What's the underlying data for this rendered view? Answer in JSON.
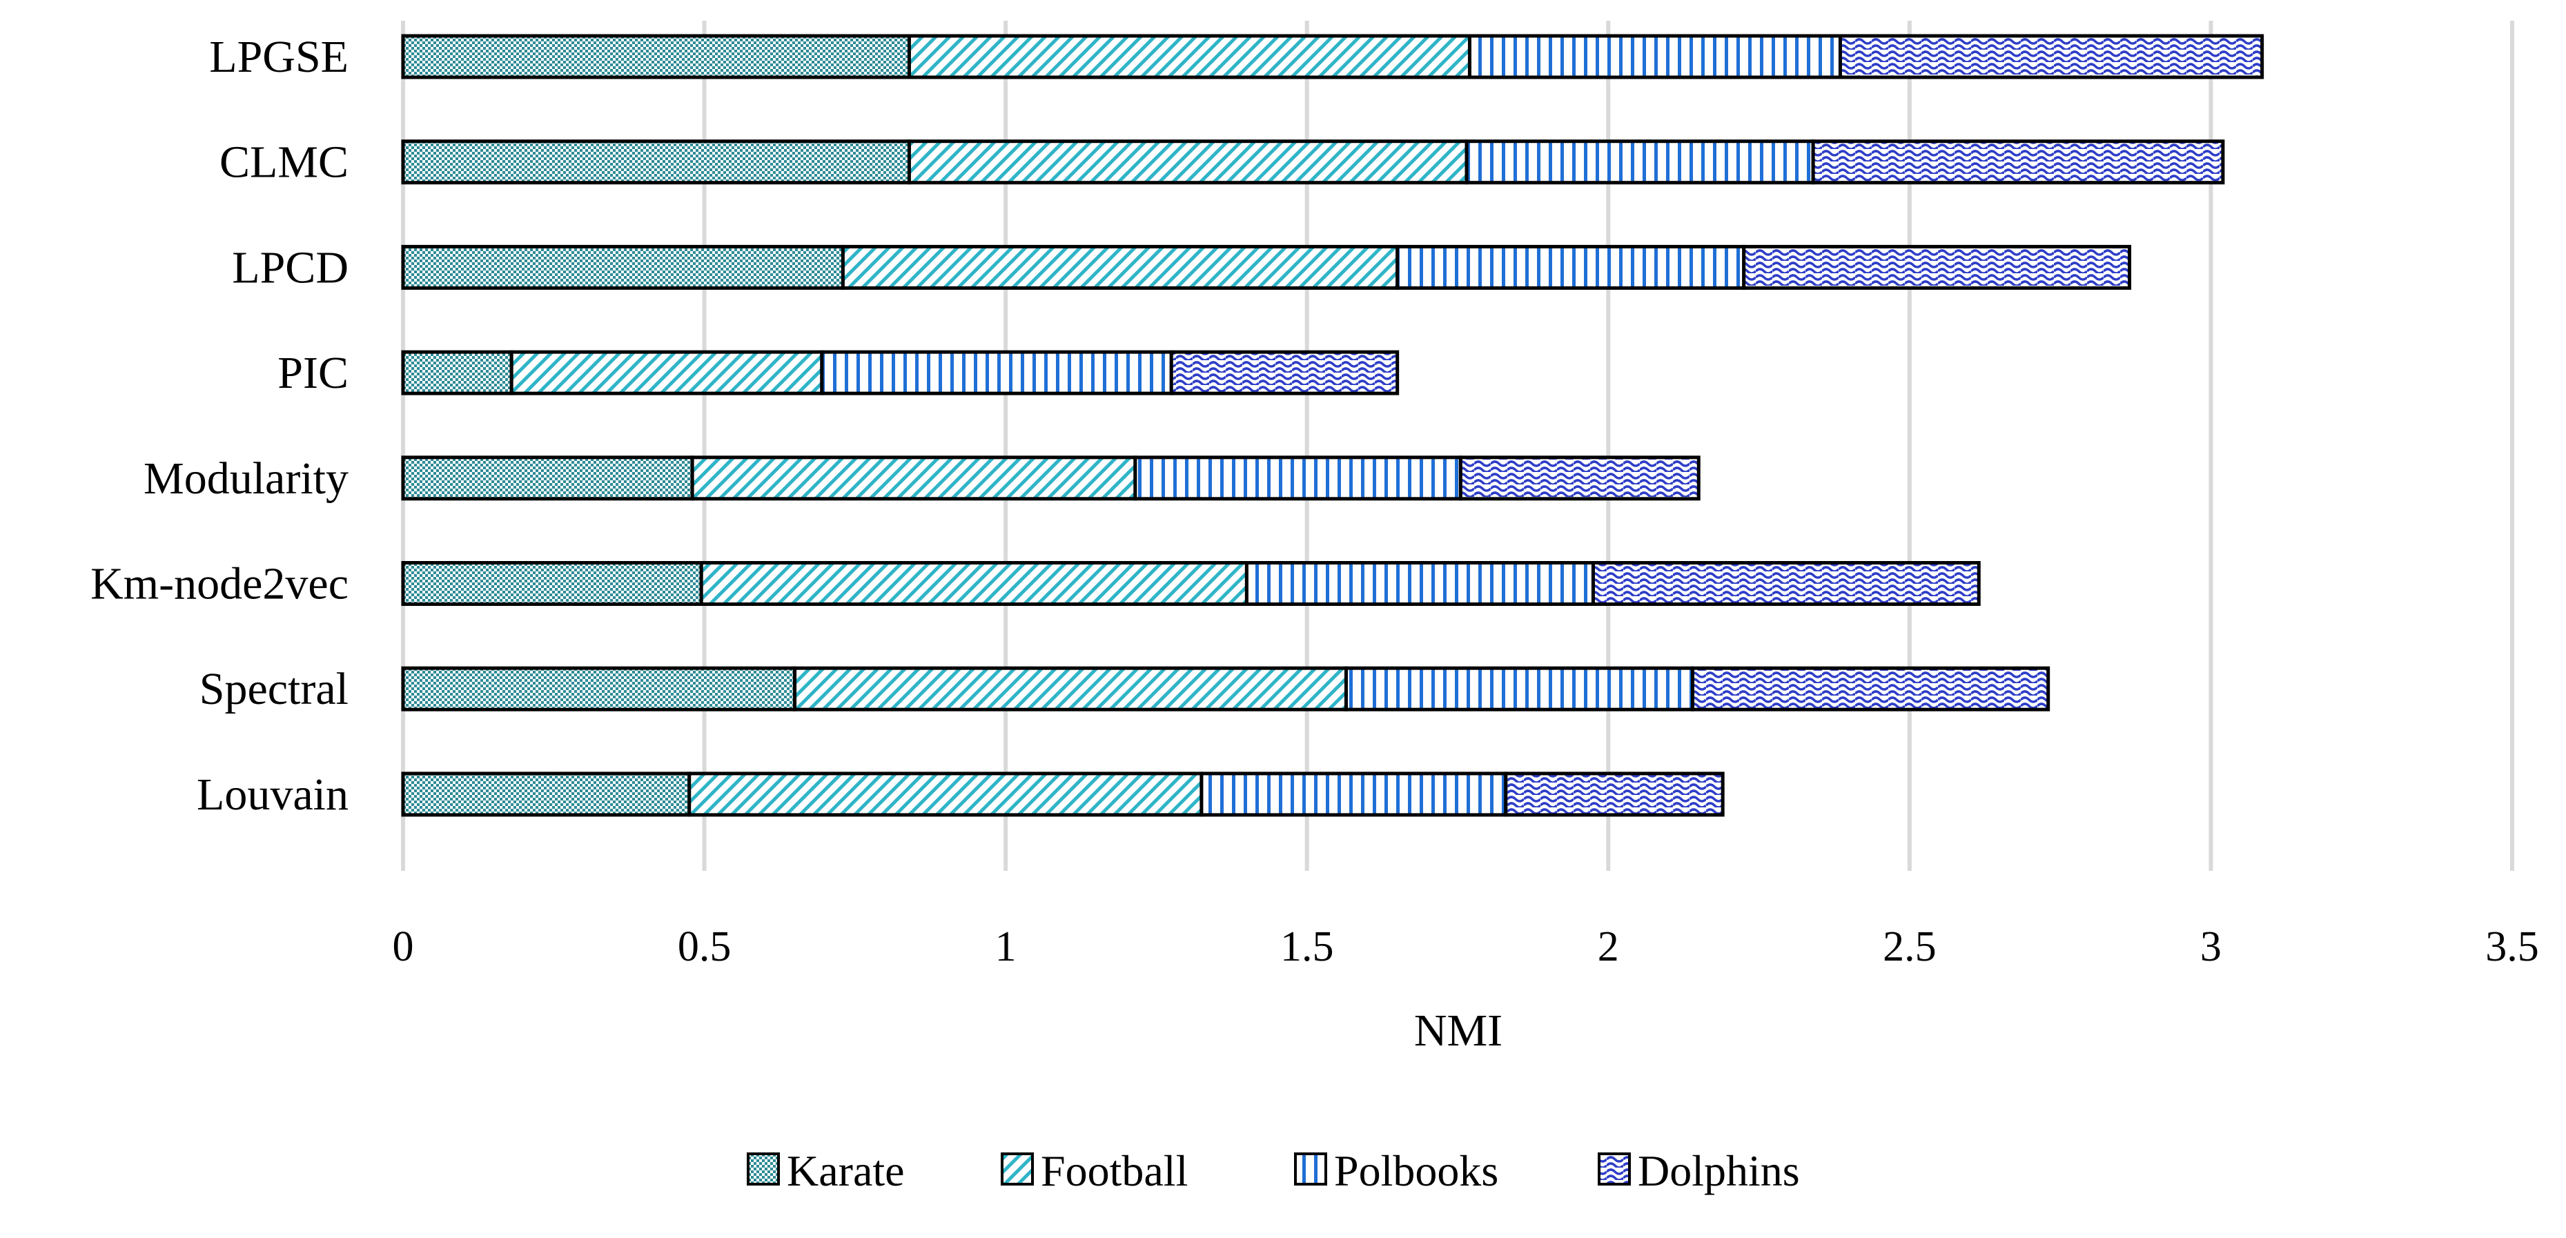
{
  "chart_data": {
    "type": "bar",
    "orientation": "horizontal",
    "stacked": true,
    "title": "",
    "xlabel": "NMI",
    "ylabel": "",
    "xlim": [
      0,
      3.5
    ],
    "xticks": [
      "0",
      "0.5",
      "1",
      "1.5",
      "2",
      "2.5",
      "3",
      "3.5"
    ],
    "grid": true,
    "legend_position": "bottom",
    "categories": [
      "LPGSE",
      "CLMC",
      "LPCD",
      "PIC",
      "Modularity",
      "Km-node2vec",
      "Spectral",
      "Louvain"
    ],
    "series": [
      {
        "name": "Karate",
        "color": "#2e8b96",
        "values": [
          0.84,
          0.84,
          0.73,
          0.18,
          0.48,
          0.495,
          0.65,
          0.475
        ]
      },
      {
        "name": "Football",
        "color": "#2fb4c8",
        "values": [
          0.93,
          0.925,
          0.92,
          0.515,
          0.735,
          0.905,
          0.915,
          0.85
        ]
      },
      {
        "name": "Polbooks",
        "color": "#1f6fd6",
        "values": [
          0.615,
          0.575,
          0.575,
          0.58,
          0.54,
          0.575,
          0.575,
          0.505
        ]
      },
      {
        "name": "Dolphins",
        "color": "#2e3ec8",
        "values": [
          0.7,
          0.68,
          0.64,
          0.375,
          0.395,
          0.64,
          0.59,
          0.36
        ]
      }
    ]
  }
}
